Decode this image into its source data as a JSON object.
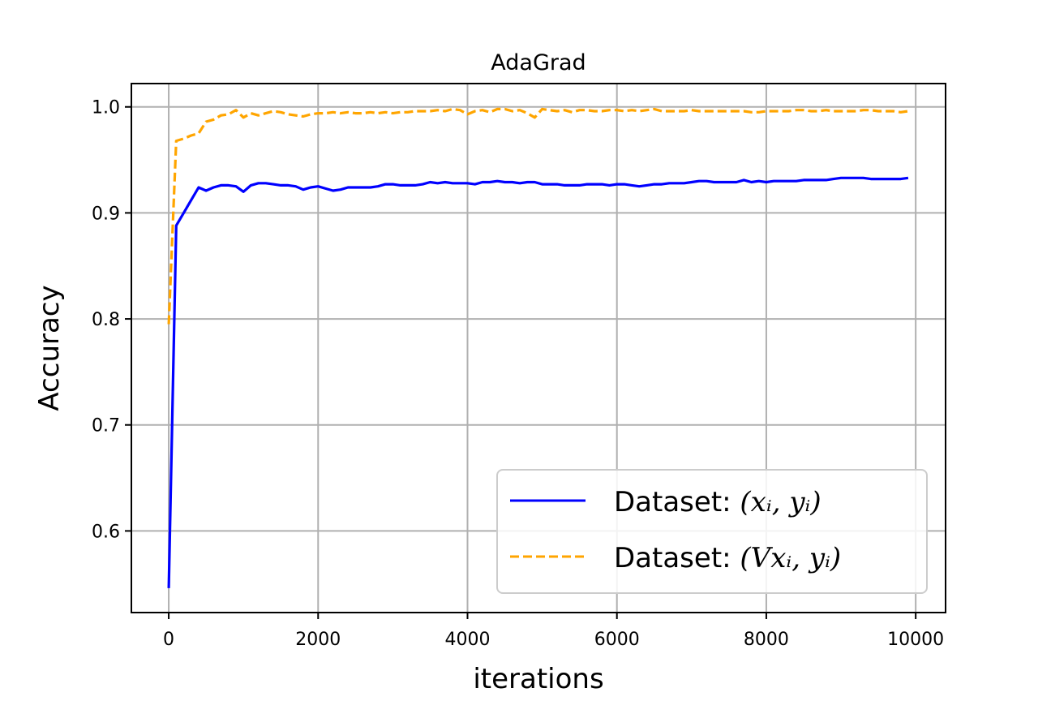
{
  "chart_data": {
    "type": "line",
    "title": "AdaGrad",
    "xlabel": "iterations",
    "ylabel": "Accuracy",
    "xlim": [
      -500,
      10400
    ],
    "ylim": [
      0.523,
      1.022
    ],
    "xticks": [
      0,
      2000,
      4000,
      6000,
      8000,
      10000
    ],
    "xtick_labels": [
      "0",
      "2000",
      "4000",
      "6000",
      "8000",
      "10000"
    ],
    "yticks": [
      0.6,
      0.7,
      0.8,
      0.9,
      1.0
    ],
    "ytick_labels": [
      "0.6",
      "0.7",
      "0.8",
      "0.9",
      "1.0"
    ],
    "grid": true,
    "legend_position": "bottom-right",
    "series": [
      {
        "name_prefix": "Dataset: ",
        "name_math": "(xᵢ, yᵢ)",
        "color": "#0000ff",
        "style": "solid",
        "x": [
          0,
          100,
          200,
          300,
          400,
          500,
          600,
          700,
          800,
          900,
          1000,
          1100,
          1200,
          1300,
          1400,
          1500,
          1600,
          1700,
          1800,
          1900,
          2000,
          2100,
          2200,
          2300,
          2400,
          2500,
          2600,
          2700,
          2800,
          2900,
          3000,
          3100,
          3200,
          3300,
          3400,
          3500,
          3600,
          3700,
          3800,
          3900,
          4000,
          4100,
          4200,
          4300,
          4400,
          4500,
          4600,
          4700,
          4800,
          4900,
          5000,
          5100,
          5200,
          5300,
          5400,
          5500,
          5600,
          5700,
          5800,
          5900,
          6000,
          6100,
          6200,
          6300,
          6400,
          6500,
          6600,
          6700,
          6800,
          6900,
          7000,
          7100,
          7200,
          7300,
          7400,
          7500,
          7600,
          7700,
          7800,
          7900,
          8000,
          8100,
          8200,
          8300,
          8400,
          8500,
          8600,
          8700,
          8800,
          8900,
          9000,
          9100,
          9200,
          9300,
          9400,
          9500,
          9600,
          9700,
          9800,
          9900
        ],
        "y": [
          0.546,
          0.888,
          0.9,
          0.912,
          0.924,
          0.921,
          0.924,
          0.926,
          0.926,
          0.925,
          0.92,
          0.926,
          0.928,
          0.928,
          0.927,
          0.926,
          0.926,
          0.925,
          0.922,
          0.924,
          0.925,
          0.923,
          0.921,
          0.922,
          0.924,
          0.924,
          0.924,
          0.924,
          0.925,
          0.927,
          0.927,
          0.926,
          0.926,
          0.926,
          0.927,
          0.929,
          0.928,
          0.929,
          0.928,
          0.928,
          0.928,
          0.927,
          0.929,
          0.929,
          0.93,
          0.929,
          0.929,
          0.928,
          0.929,
          0.929,
          0.927,
          0.927,
          0.927,
          0.926,
          0.926,
          0.926,
          0.927,
          0.927,
          0.927,
          0.926,
          0.927,
          0.927,
          0.926,
          0.925,
          0.926,
          0.927,
          0.927,
          0.928,
          0.928,
          0.928,
          0.929,
          0.93,
          0.93,
          0.929,
          0.929,
          0.929,
          0.929,
          0.931,
          0.929,
          0.93,
          0.929,
          0.93,
          0.93,
          0.93,
          0.93,
          0.931,
          0.931,
          0.931,
          0.931,
          0.932,
          0.933,
          0.933,
          0.933,
          0.933,
          0.932,
          0.932,
          0.932,
          0.932,
          0.932,
          0.933
        ]
      },
      {
        "name_prefix": "Dataset: ",
        "name_math": "(Vxᵢ, yᵢ)",
        "color": "#ffa500",
        "style": "dashed",
        "x": [
          0,
          100,
          200,
          300,
          400,
          500,
          600,
          700,
          800,
          900,
          1000,
          1100,
          1200,
          1300,
          1400,
          1500,
          1600,
          1700,
          1800,
          1900,
          2000,
          2100,
          2200,
          2300,
          2400,
          2500,
          2600,
          2700,
          2800,
          2900,
          3000,
          3100,
          3200,
          3300,
          3400,
          3500,
          3600,
          3700,
          3800,
          3900,
          4000,
          4100,
          4200,
          4300,
          4400,
          4500,
          4600,
          4700,
          4800,
          4900,
          5000,
          5100,
          5200,
          5300,
          5400,
          5500,
          5600,
          5700,
          5800,
          5900,
          6000,
          6100,
          6200,
          6300,
          6400,
          6500,
          6600,
          6700,
          6800,
          6900,
          7000,
          7100,
          7200,
          7300,
          7400,
          7500,
          7600,
          7700,
          7800,
          7900,
          8000,
          8100,
          8200,
          8300,
          8400,
          8500,
          8600,
          8700,
          8800,
          8900,
          9000,
          9100,
          9200,
          9300,
          9400,
          9500,
          9600,
          9700,
          9800,
          9900
        ],
        "y": [
          0.795,
          0.968,
          0.97,
          0.973,
          0.975,
          0.986,
          0.988,
          0.992,
          0.993,
          0.997,
          0.99,
          0.994,
          0.992,
          0.994,
          0.996,
          0.995,
          0.993,
          0.992,
          0.991,
          0.993,
          0.994,
          0.994,
          0.995,
          0.994,
          0.995,
          0.994,
          0.994,
          0.995,
          0.994,
          0.995,
          0.994,
          0.995,
          0.995,
          0.996,
          0.996,
          0.996,
          0.997,
          0.996,
          0.998,
          0.997,
          0.993,
          0.996,
          0.997,
          0.995,
          0.998,
          0.998,
          0.996,
          0.997,
          0.994,
          0.99,
          0.998,
          0.997,
          0.996,
          0.997,
          0.995,
          0.997,
          0.997,
          0.996,
          0.996,
          0.997,
          0.997,
          0.996,
          0.997,
          0.996,
          0.997,
          0.998,
          0.996,
          0.996,
          0.996,
          0.996,
          0.997,
          0.996,
          0.996,
          0.996,
          0.996,
          0.996,
          0.996,
          0.996,
          0.995,
          0.995,
          0.996,
          0.996,
          0.996,
          0.996,
          0.997,
          0.997,
          0.996,
          0.996,
          0.997,
          0.996,
          0.996,
          0.996,
          0.996,
          0.997,
          0.997,
          0.996,
          0.996,
          0.996,
          0.995,
          0.996
        ]
      }
    ]
  }
}
